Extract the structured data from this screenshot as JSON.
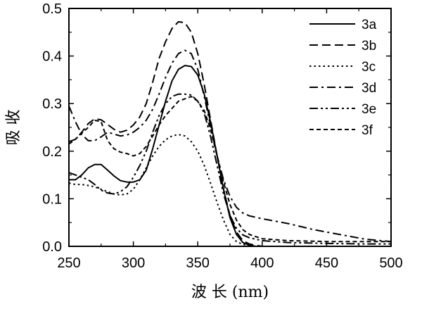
{
  "chart_data": {
    "type": "line",
    "xlabel": "波 长 (nm)",
    "ylabel": "吸 收",
    "xlim": [
      250,
      500
    ],
    "ylim": [
      0.0,
      0.5
    ],
    "x_ticks": [
      "250",
      "300",
      "350",
      "400",
      "450",
      "500"
    ],
    "y_ticks": [
      "0.0",
      "0.1",
      "0.2",
      "0.3",
      "0.4",
      "0.5"
    ],
    "grid": false,
    "legend_position": "top-right",
    "series": [
      {
        "name": "3a",
        "dash": "solid",
        "x": [
          250,
          255,
          260,
          265,
          270,
          275,
          280,
          285,
          290,
          295,
          300,
          305,
          310,
          315,
          320,
          325,
          330,
          335,
          340,
          345,
          350,
          355,
          360,
          365,
          370,
          375,
          380,
          385,
          390,
          395,
          400,
          420,
          450,
          480,
          500
        ],
        "y": [
          0.14,
          0.14,
          0.15,
          0.165,
          0.172,
          0.172,
          0.16,
          0.148,
          0.138,
          0.135,
          0.135,
          0.14,
          0.16,
          0.205,
          0.255,
          0.305,
          0.348,
          0.372,
          0.38,
          0.378,
          0.36,
          0.32,
          0.26,
          0.19,
          0.12,
          0.06,
          0.025,
          0.008,
          0.002,
          0.0,
          0.0,
          0.0,
          0.0,
          0.0,
          0.0
        ]
      },
      {
        "name": "3b",
        "dash": "dash",
        "x": [
          250,
          255,
          260,
          265,
          270,
          275,
          280,
          285,
          290,
          295,
          300,
          305,
          310,
          315,
          320,
          325,
          330,
          335,
          340,
          345,
          350,
          355,
          360,
          365,
          370,
          375,
          380,
          385,
          390,
          395,
          400,
          420,
          450,
          480,
          500
        ],
        "y": [
          0.22,
          0.225,
          0.24,
          0.258,
          0.268,
          0.266,
          0.256,
          0.246,
          0.24,
          0.244,
          0.255,
          0.272,
          0.3,
          0.345,
          0.395,
          0.43,
          0.458,
          0.472,
          0.47,
          0.45,
          0.405,
          0.34,
          0.265,
          0.19,
          0.12,
          0.065,
          0.03,
          0.012,
          0.005,
          0.002,
          0.0,
          0.0,
          0.0,
          0.0,
          0.0
        ]
      },
      {
        "name": "3c",
        "dash": "dot",
        "x": [
          250,
          255,
          260,
          265,
          270,
          275,
          280,
          285,
          290,
          295,
          300,
          305,
          310,
          315,
          320,
          325,
          330,
          335,
          340,
          345,
          350,
          355,
          360,
          365,
          370,
          375,
          380,
          385,
          390,
          395,
          400,
          420,
          450,
          480,
          500
        ],
        "y": [
          0.133,
          0.13,
          0.13,
          0.128,
          0.125,
          0.12,
          0.115,
          0.11,
          0.108,
          0.11,
          0.12,
          0.14,
          0.165,
          0.19,
          0.21,
          0.224,
          0.232,
          0.235,
          0.232,
          0.22,
          0.2,
          0.17,
          0.132,
          0.092,
          0.055,
          0.025,
          0.01,
          0.004,
          0.002,
          0.0,
          0.0,
          0.0,
          0.0,
          0.0,
          0.0
        ]
      },
      {
        "name": "3d",
        "dash": "dashdot",
        "x": [
          250,
          255,
          260,
          265,
          270,
          275,
          280,
          285,
          290,
          295,
          300,
          305,
          310,
          315,
          320,
          325,
          330,
          335,
          340,
          345,
          350,
          355,
          360,
          365,
          370,
          375,
          380,
          385,
          390,
          400,
          420,
          440,
          460,
          480,
          500
        ],
        "y": [
          0.295,
          0.262,
          0.235,
          0.222,
          0.222,
          0.23,
          0.24,
          0.236,
          0.232,
          0.234,
          0.24,
          0.25,
          0.265,
          0.288,
          0.32,
          0.355,
          0.385,
          0.405,
          0.412,
          0.405,
          0.372,
          0.315,
          0.252,
          0.19,
          0.14,
          0.105,
          0.082,
          0.07,
          0.064,
          0.058,
          0.048,
          0.035,
          0.025,
          0.015,
          0.01
        ]
      },
      {
        "name": "3e",
        "dash": "dashdotdot",
        "x": [
          250,
          255,
          260,
          265,
          270,
          275,
          280,
          285,
          290,
          295,
          300,
          305,
          310,
          315,
          320,
          325,
          330,
          335,
          340,
          345,
          350,
          355,
          360,
          365,
          370,
          375,
          380,
          385,
          390,
          400,
          420,
          450,
          480,
          500
        ],
        "y": [
          0.155,
          0.15,
          0.145,
          0.14,
          0.13,
          0.118,
          0.112,
          0.11,
          0.115,
          0.125,
          0.145,
          0.17,
          0.2,
          0.24,
          0.275,
          0.3,
          0.315,
          0.32,
          0.32,
          0.318,
          0.305,
          0.28,
          0.23,
          0.17,
          0.11,
          0.065,
          0.038,
          0.024,
          0.018,
          0.012,
          0.008,
          0.006,
          0.005,
          0.005
        ]
      },
      {
        "name": "3f",
        "dash": "shortdash",
        "x": [
          250,
          255,
          260,
          265,
          270,
          275,
          280,
          285,
          290,
          295,
          300,
          305,
          310,
          315,
          320,
          325,
          330,
          335,
          340,
          345,
          350,
          355,
          360,
          365,
          370,
          375,
          380,
          385,
          390,
          400,
          420,
          450,
          480,
          500
        ],
        "y": [
          0.215,
          0.225,
          0.238,
          0.25,
          0.265,
          0.262,
          0.222,
          0.205,
          0.198,
          0.195,
          0.19,
          0.195,
          0.21,
          0.232,
          0.255,
          0.275,
          0.29,
          0.305,
          0.31,
          0.315,
          0.305,
          0.285,
          0.245,
          0.19,
          0.135,
          0.088,
          0.055,
          0.035,
          0.025,
          0.016,
          0.012,
          0.01,
          0.01,
          0.01
        ]
      }
    ]
  }
}
